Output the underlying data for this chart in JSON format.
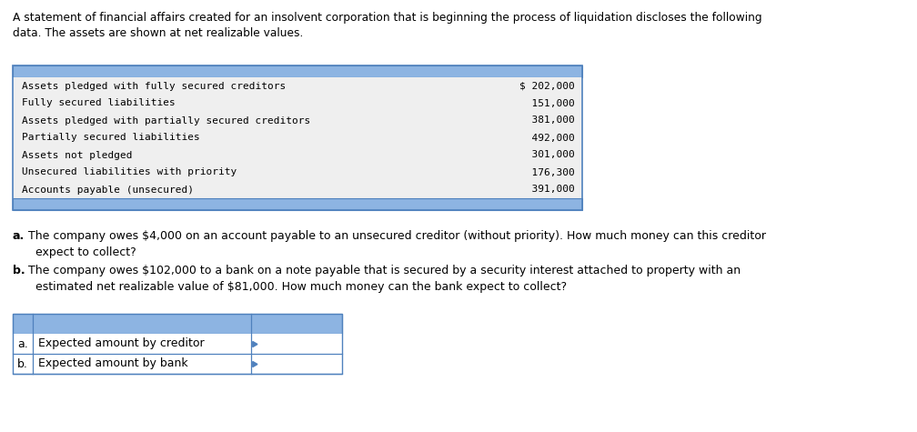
{
  "title_text": "A statement of financial affairs created for an insolvent corporation that is beginning the process of liquidation discloses the following\ndata. The assets are shown at net realizable values.",
  "table1_rows": [
    [
      "Assets pledged with fully secured creditors",
      "$ 202,000"
    ],
    [
      "Fully secured liabilities",
      "  151,000"
    ],
    [
      "Assets pledged with partially secured creditors",
      "  381,000"
    ],
    [
      "Partially secured liabilities",
      "  492,000"
    ],
    [
      "Assets not pledged",
      "  301,000"
    ],
    [
      "Unsecured liabilities with priority",
      "  176,300"
    ],
    [
      "Accounts payable (unsecured)",
      "  391,000"
    ]
  ],
  "question_a_bold": "a.",
  "question_a_rest": " The company owes $4,000 on an account payable to an unsecured creditor (without priority). How much money can this creditor\n   expect to collect?",
  "question_b_bold": "b.",
  "question_b_rest": " The company owes $102,000 to a bank on a note payable that is secured by a security interest attached to property with an\n   estimated net realizable value of $81,000. How much money can the bank expect to collect?",
  "table2_rows": [
    [
      "a.",
      "Expected amount by creditor",
      ""
    ],
    [
      "b.",
      "Expected amount by bank",
      ""
    ]
  ],
  "header_color": "#8db4e2",
  "table_border_color": "#4f81bd",
  "bg_color": "#ffffff",
  "text_color": "#000000",
  "mono_font": "DejaVu Sans Mono",
  "normal_font": "DejaVu Sans",
  "table1_bg": "#efefef",
  "title_fontsize": 8.8,
  "table1_fontsize": 8.0,
  "question_fontsize": 9.0,
  "table2_fontsize": 9.0
}
